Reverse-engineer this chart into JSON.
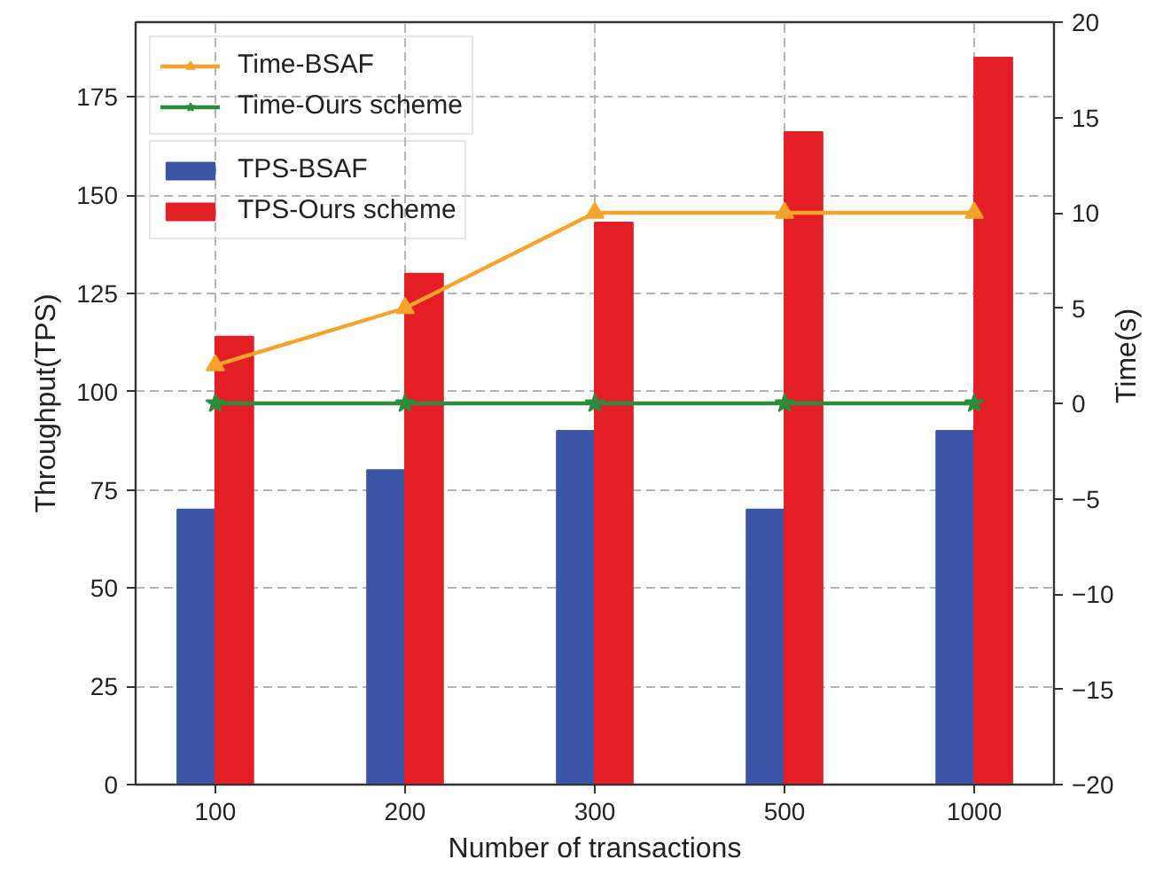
{
  "chart_data": {
    "type": "bar",
    "categories": [
      "100",
      "200",
      "300",
      "500",
      "1000"
    ],
    "xlabel": "Number of transactions",
    "ylabel": "Throughput(TPS)",
    "y2label": "Time(s)",
    "ylim": [
      0,
      194
    ],
    "yticks": [
      0,
      25,
      50,
      75,
      100,
      125,
      150,
      175
    ],
    "y2lim": [
      -20,
      20
    ],
    "y2ticks": [
      -20,
      -15,
      -10,
      -5,
      0,
      5,
      10,
      15,
      20
    ],
    "grid": true,
    "legend": "top left",
    "line_style": "solid",
    "series": [
      {
        "name": "TPS-BSAF",
        "color": "#3c54a5",
        "values": [
          70,
          80,
          90,
          70,
          90
        ]
      },
      {
        "name": "TPS-Ours scheme",
        "color": "#e31e25",
        "values": [
          114,
          130,
          143,
          166,
          185
        ]
      },
      {
        "name": "Time-BSAF",
        "type": "line",
        "axis": "y2",
        "color": "#f6a32a",
        "marker": "triangle",
        "values": [
          2,
          5,
          10,
          10,
          10
        ]
      },
      {
        "name": "Time-Ours scheme",
        "type": "line",
        "axis": "y2",
        "color": "#2b8c3b",
        "marker": "star",
        "values": [
          0,
          0,
          0,
          0,
          0
        ]
      }
    ]
  }
}
